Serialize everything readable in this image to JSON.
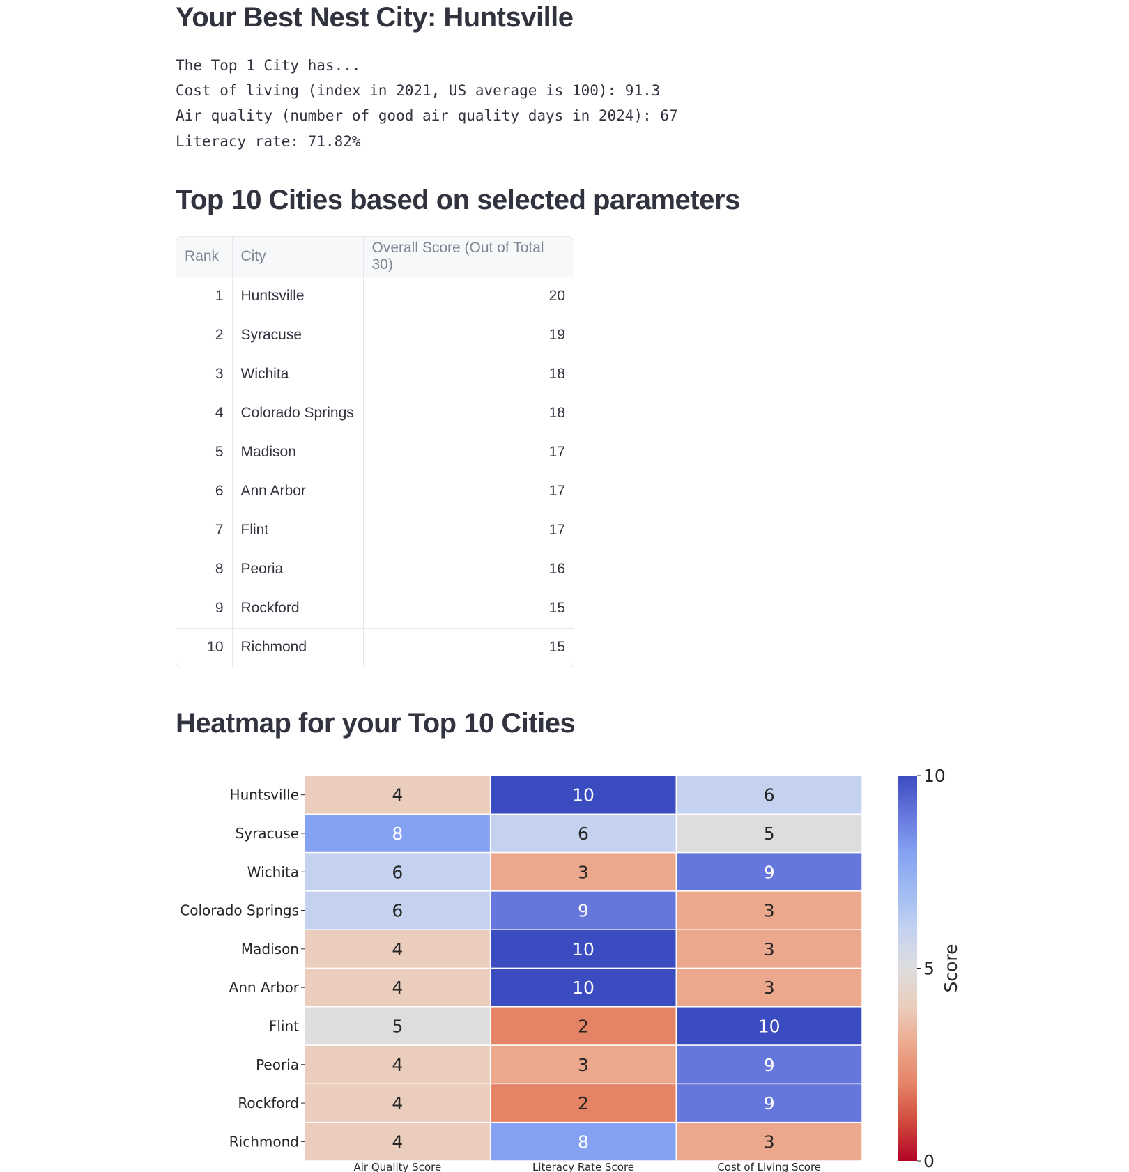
{
  "header": {
    "title": "Your Best Nest City: Huntsville"
  },
  "summary": {
    "lines": [
      "The Top 1 City has...",
      "Cost of living (index in 2021, US average is 100): 91.3",
      "Air quality (number of good air quality days in 2024): 67",
      "Literacy rate: 71.82%"
    ]
  },
  "table_section": {
    "title": "Top 10 Cities based on selected parameters",
    "columns": [
      "Rank",
      "City",
      "Overall Score (Out of Total 30)"
    ],
    "rows": [
      {
        "rank": "1",
        "city": "Huntsville",
        "score": "20"
      },
      {
        "rank": "2",
        "city": "Syracuse",
        "score": "19"
      },
      {
        "rank": "3",
        "city": "Wichita",
        "score": "18"
      },
      {
        "rank": "4",
        "city": "Colorado Springs",
        "score": "18"
      },
      {
        "rank": "5",
        "city": "Madison",
        "score": "17"
      },
      {
        "rank": "6",
        "city": "Ann Arbor",
        "score": "17"
      },
      {
        "rank": "7",
        "city": "Flint",
        "score": "17"
      },
      {
        "rank": "8",
        "city": "Peoria",
        "score": "16"
      },
      {
        "rank": "9",
        "city": "Rockford",
        "score": "15"
      },
      {
        "rank": "10",
        "city": "Richmond",
        "score": "15"
      }
    ]
  },
  "heatmap_section": {
    "title": "Heatmap for your Top 10 Cities"
  },
  "chart_data": {
    "type": "heatmap",
    "title": "",
    "rows": [
      "Huntsville",
      "Syracuse",
      "Wichita",
      "Colorado Springs",
      "Madison",
      "Ann Arbor",
      "Flint",
      "Peoria",
      "Rockford",
      "Richmond"
    ],
    "columns": [
      "Air Quality Score",
      "Literacy Rate Score",
      "Cost of Living Score"
    ],
    "values": [
      [
        4,
        10,
        6
      ],
      [
        8,
        6,
        5
      ],
      [
        6,
        3,
        9
      ],
      [
        6,
        9,
        3
      ],
      [
        4,
        10,
        3
      ],
      [
        4,
        10,
        3
      ],
      [
        5,
        2,
        10
      ],
      [
        4,
        3,
        9
      ],
      [
        4,
        2,
        9
      ],
      [
        4,
        8,
        3
      ]
    ],
    "colormap": "coolwarm_r",
    "vmin": 0,
    "vmax": 10,
    "colorbar_label": "Score",
    "colorbar_ticks": [
      "0",
      "5",
      "10"
    ]
  }
}
